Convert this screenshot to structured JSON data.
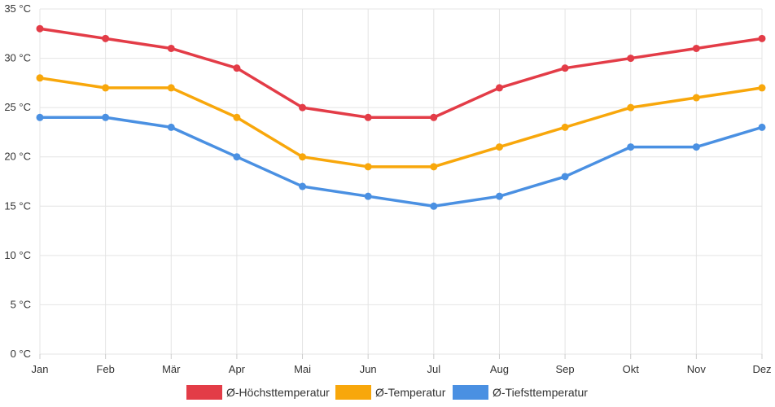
{
  "chart_data": {
    "type": "line",
    "categories": [
      "Jan",
      "Feb",
      "Mär",
      "Apr",
      "Mai",
      "Jun",
      "Jul",
      "Aug",
      "Sep",
      "Okt",
      "Nov",
      "Dez"
    ],
    "series": [
      {
        "name": "Ø-Höchsttemperatur",
        "color": "#e33c47",
        "values": [
          33,
          32,
          31,
          29,
          25,
          24,
          24,
          27,
          29,
          30,
          31,
          32
        ]
      },
      {
        "name": "Ø-Temperatur",
        "color": "#f8a70b",
        "values": [
          28,
          27,
          27,
          24,
          20,
          19,
          19,
          21,
          23,
          25,
          26,
          27
        ]
      },
      {
        "name": "Ø-Tiefsttemperatur",
        "color": "#4a90e2",
        "values": [
          24,
          24,
          23,
          20,
          17,
          16,
          15,
          16,
          18,
          21,
          21,
          23
        ]
      }
    ],
    "ylim": [
      0,
      35
    ],
    "yticks": [
      {
        "value": 0,
        "label": "0 °C"
      },
      {
        "value": 5,
        "label": "5 °C"
      },
      {
        "value": 10,
        "label": "10 °C"
      },
      {
        "value": 15,
        "label": "15 °C"
      },
      {
        "value": 20,
        "label": "20 °C"
      },
      {
        "value": 25,
        "label": "25 °C"
      },
      {
        "value": 30,
        "label": "30 °C"
      },
      {
        "value": 35,
        "label": "35 °C"
      }
    ],
    "grid": true,
    "legend_position": "bottom"
  }
}
